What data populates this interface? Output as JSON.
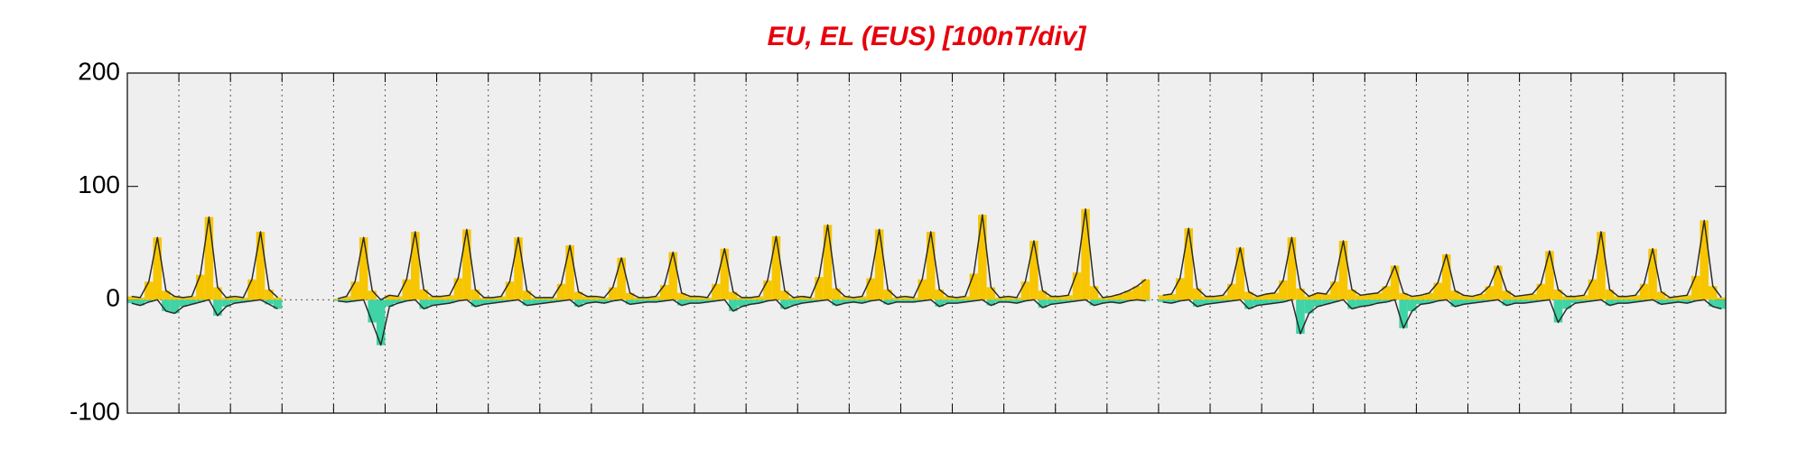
{
  "chart_data": {
    "type": "line",
    "title": "EU, EL (EUS)  [100nT/div]",
    "x": [
      2,
      6,
      10,
      14,
      18,
      22,
      26,
      30,
      34,
      38,
      42,
      46,
      50,
      54,
      58,
      62,
      66,
      70,
      74,
      78,
      82,
      86,
      90,
      94,
      98,
      102,
      106,
      110,
      114,
      118,
      122,
      126,
      130,
      134,
      138,
      142,
      146,
      150,
      154,
      158,
      162,
      166,
      170,
      174,
      178,
      182,
      186,
      190,
      194,
      198,
      202,
      206,
      210,
      214,
      218,
      222,
      226,
      230,
      234,
      238,
      242,
      246,
      250,
      254,
      258,
      262,
      266,
      270,
      274,
      278,
      282,
      286,
      290,
      294,
      298,
      302,
      306,
      310,
      314,
      318,
      322,
      326,
      330,
      334,
      338,
      342,
      346,
      350,
      354,
      358,
      362,
      366,
      370,
      374,
      378,
      382,
      386,
      390,
      394,
      398,
      402,
      406,
      410,
      414,
      418,
      422,
      426,
      430,
      434,
      438,
      442,
      446,
      450,
      454,
      458,
      462,
      466,
      470,
      474,
      478,
      482,
      486,
      490,
      494,
      498,
      502,
      506,
      510,
      514,
      518,
      522,
      526,
      530,
      534,
      538,
      542,
      546,
      550,
      554,
      558,
      562,
      566,
      570,
      574,
      578,
      582,
      586,
      590,
      594,
      598,
      602,
      606,
      610,
      614,
      618,
      622,
      626,
      630,
      634,
      638,
      642,
      646,
      650,
      654,
      658,
      662,
      666,
      670,
      674,
      678,
      682,
      686,
      690,
      694,
      698,
      702,
      706,
      710,
      714,
      718,
      722,
      726,
      730,
      734,
      738,
      742
    ],
    "series": [
      {
        "color": "#f7c600",
        "values": [
          3,
          2,
          16,
          55,
          8,
          3,
          2,
          3,
          22,
          73,
          11,
          2,
          3,
          2,
          18,
          60,
          9,
          2,
          null,
          null,
          null,
          null,
          null,
          null,
          1,
          3,
          16,
          55,
          8,
          0,
          4,
          3,
          18,
          60,
          9,
          3,
          3,
          4,
          19,
          62,
          9,
          2,
          2,
          3,
          16,
          55,
          8,
          2,
          2,
          2,
          14,
          48,
          7,
          3,
          3,
          2,
          11,
          37,
          6,
          2,
          2,
          3,
          13,
          42,
          6,
          3,
          3,
          2,
          14,
          45,
          7,
          2,
          2,
          3,
          17,
          56,
          8,
          2,
          3,
          2,
          20,
          66,
          10,
          3,
          2,
          3,
          19,
          62,
          9,
          2,
          3,
          2,
          18,
          60,
          9,
          3,
          2,
          3,
          23,
          75,
          11,
          2,
          3,
          2,
          16,
          52,
          8,
          3,
          3,
          4,
          24,
          80,
          12,
          2,
          3,
          5,
          8,
          12,
          18,
          null,
          4,
          5,
          19,
          63,
          10,
          3,
          3,
          4,
          14,
          46,
          7,
          3,
          5,
          6,
          17,
          55,
          10,
          3,
          6,
          5,
          16,
          52,
          9,
          4,
          5,
          6,
          12,
          30,
          6,
          3,
          4,
          6,
          15,
          40,
          8,
          4,
          3,
          5,
          12,
          30,
          8,
          3,
          4,
          5,
          14,
          43,
          9,
          3,
          3,
          4,
          18,
          60,
          9,
          3,
          3,
          4,
          14,
          45,
          7,
          2,
          3,
          4,
          21,
          70,
          12,
          2
        ]
      },
      {
        "color": "#3fd3a6",
        "values": [
          -3,
          -5,
          -2,
          0,
          -10,
          -12,
          -6,
          -4,
          -2,
          0,
          -14,
          -6,
          -3,
          -2,
          -1,
          0,
          -4,
          -8,
          null,
          null,
          null,
          null,
          null,
          null,
          -1,
          -2,
          -1,
          0,
          -20,
          -40,
          -6,
          -3,
          -1,
          0,
          -8,
          -5,
          -4,
          -3,
          -1,
          0,
          -6,
          -4,
          -3,
          -2,
          -1,
          0,
          -5,
          -4,
          -3,
          -2,
          -1,
          0,
          -6,
          -3,
          -2,
          -3,
          -1,
          0,
          -4,
          -3,
          -2,
          -2,
          -1,
          0,
          -5,
          -3,
          -3,
          -2,
          -1,
          0,
          -10,
          -6,
          -4,
          -3,
          -1,
          0,
          -8,
          -5,
          -3,
          -2,
          -1,
          0,
          -5,
          -3,
          -2,
          -3,
          -1,
          0,
          -4,
          -2,
          -2,
          -2,
          -1,
          0,
          -6,
          -3,
          -3,
          -2,
          -1,
          0,
          -5,
          -2,
          -2,
          -3,
          -1,
          0,
          -7,
          -4,
          -3,
          -2,
          -1,
          0,
          -5,
          -3,
          -2,
          -3,
          -1,
          0,
          -1,
          null,
          -2,
          -3,
          -1,
          0,
          -6,
          -4,
          -3,
          -2,
          -1,
          0,
          -8,
          -5,
          -4,
          -3,
          -2,
          0,
          -30,
          -12,
          -6,
          -4,
          -2,
          0,
          -8,
          -6,
          -5,
          -3,
          -2,
          0,
          -25,
          -10,
          -4,
          -3,
          -1,
          0,
          -6,
          -4,
          -3,
          -2,
          -1,
          0,
          -5,
          -3,
          -3,
          -2,
          -1,
          0,
          -20,
          -8,
          -3,
          -2,
          -1,
          0,
          -5,
          -3,
          -3,
          -2,
          -1,
          0,
          -4,
          -3,
          -2,
          -3,
          -1,
          0,
          -6,
          -8
        ]
      }
    ],
    "line_color": "#2b2b2b",
    "xlim": [
      0,
      744
    ],
    "xticks": [
      0,
      24,
      48,
      72,
      96,
      120,
      144,
      168,
      192,
      216,
      240,
      264,
      288,
      312,
      336,
      360,
      384,
      408,
      432,
      456,
      480,
      504,
      528,
      552,
      576,
      600,
      624,
      648,
      672,
      696,
      720,
      744
    ],
    "ylim": [
      -100,
      200
    ],
    "yticks": [
      -100,
      0,
      100,
      200
    ],
    "grid": true
  }
}
